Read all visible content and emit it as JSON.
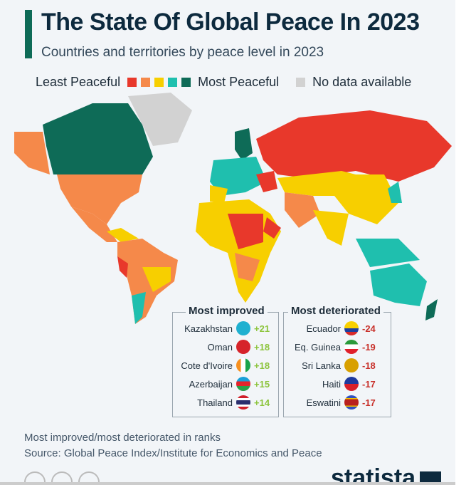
{
  "header": {
    "title": "The State Of Global Peace In 2023",
    "subtitle": "Countries and territories by peace level in 2023"
  },
  "legend": {
    "least": "Least Peaceful",
    "most": "Most Peaceful",
    "nodata": "No data available",
    "colors": [
      "#e8382b",
      "#f5894a",
      "#f7cf00",
      "#1fbfae",
      "#0e6b57"
    ],
    "nodata_color": "#d2d2d2"
  },
  "chart_data": {
    "type": "choropleth",
    "title": "The State Of Global Peace In 2023",
    "categories": [
      "Least Peaceful",
      "2",
      "3",
      "4",
      "Most Peaceful",
      "No data available"
    ],
    "most_improved": [
      {
        "country": "Kazakhstan",
        "change": "+21"
      },
      {
        "country": "Oman",
        "change": "+18"
      },
      {
        "country": "Cote d'Ivoire",
        "change": "+18"
      },
      {
        "country": "Azerbaijan",
        "change": "+15"
      },
      {
        "country": "Thailand",
        "change": "+14"
      }
    ],
    "most_deteriorated": [
      {
        "country": "Ecuador",
        "change": "-24"
      },
      {
        "country": "Eq. Guinea",
        "change": "-19"
      },
      {
        "country": "Sri Lanka",
        "change": "-18"
      },
      {
        "country": "Haiti",
        "change": "-17"
      },
      {
        "country": "Eswatini",
        "change": "-17"
      }
    ]
  },
  "boxes": {
    "improved_title": "Most improved",
    "deteriorated_title": "Most deteriorated"
  },
  "footer": {
    "note": "Most improved/most deteriorated in ranks",
    "source": "Source: Global Peace Index/Institute for Economics and Peace",
    "brand": "statista"
  }
}
